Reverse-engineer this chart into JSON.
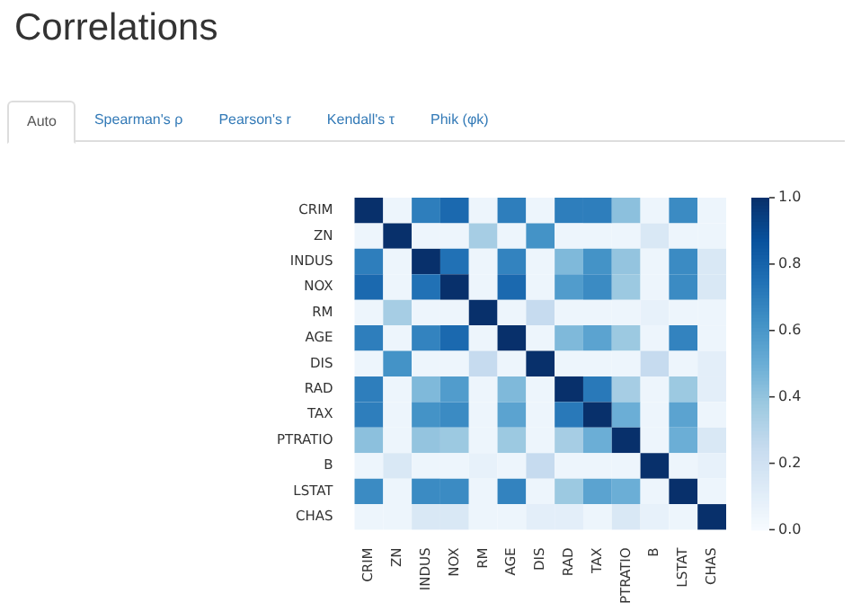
{
  "chart_data": {
    "type": "heatmap",
    "title": "Correlations",
    "annotations": [
      "Auto",
      "Spearman's ρ",
      "Pearson's r",
      "Kendall's τ",
      "Phik (φk)"
    ],
    "categories": [
      "CRIM",
      "ZN",
      "INDUS",
      "NOX",
      "RM",
      "AGE",
      "DIS",
      "RAD",
      "TAX",
      "PTRATIO",
      "B",
      "LSTAT",
      "CHAS"
    ],
    "y_categories": [
      "CRIM",
      "ZN",
      "INDUS",
      "NOX",
      "RM",
      "AGE",
      "DIS",
      "RAD",
      "TAX",
      "PTRATIO",
      "B",
      "LSTAT",
      "CHAS"
    ],
    "cells": [
      [
        1,
        0.05,
        0.7,
        0.78,
        0.05,
        0.7,
        0.05,
        0.7,
        0.7,
        0.42,
        0.05,
        0.65,
        0.05
      ],
      [
        0.05,
        1,
        0.05,
        0.05,
        0.35,
        0.05,
        0.62,
        0.05,
        0.05,
        0.05,
        0.15,
        0.05,
        0.05
      ],
      [
        0.7,
        0.05,
        1,
        0.75,
        0.05,
        0.68,
        0.05,
        0.45,
        0.62,
        0.4,
        0.05,
        0.65,
        0.15
      ],
      [
        0.78,
        0.05,
        0.75,
        1,
        0.05,
        0.78,
        0.05,
        0.58,
        0.65,
        0.38,
        0.05,
        0.65,
        0.15
      ],
      [
        0.05,
        0.35,
        0.05,
        0.05,
        1,
        0.05,
        0.25,
        0.05,
        0.05,
        0.05,
        0.08,
        0.05,
        0.05
      ],
      [
        0.7,
        0.05,
        0.68,
        0.78,
        0.05,
        1,
        0.05,
        0.45,
        0.55,
        0.38,
        0.05,
        0.68,
        0.05
      ],
      [
        0.05,
        0.62,
        0.05,
        0.05,
        0.25,
        0.05,
        1,
        0.05,
        0.05,
        0.05,
        0.25,
        0.05,
        0.1
      ],
      [
        0.7,
        0.05,
        0.45,
        0.58,
        0.05,
        0.45,
        0.05,
        1,
        0.72,
        0.35,
        0.05,
        0.38,
        0.1
      ],
      [
        0.7,
        0.05,
        0.62,
        0.65,
        0.05,
        0.55,
        0.05,
        0.72,
        1,
        0.5,
        0.05,
        0.55,
        0.05
      ],
      [
        0.42,
        0.05,
        0.4,
        0.38,
        0.05,
        0.38,
        0.05,
        0.35,
        0.5,
        1,
        0.05,
        0.5,
        0.15
      ],
      [
        0.05,
        0.15,
        0.05,
        0.05,
        0.08,
        0.05,
        0.25,
        0.05,
        0.05,
        0.05,
        1,
        0.05,
        0.08
      ],
      [
        0.65,
        0.05,
        0.65,
        0.65,
        0.05,
        0.68,
        0.05,
        0.38,
        0.55,
        0.5,
        0.05,
        1,
        0.05
      ],
      [
        0.05,
        0.05,
        0.15,
        0.15,
        0.05,
        0.05,
        0.1,
        0.1,
        0.05,
        0.15,
        0.08,
        0.05,
        1
      ]
    ],
    "clim": [
      0,
      1
    ],
    "cticks": [
      {
        "value": 0,
        "label": "0.0"
      },
      {
        "value": 0.2,
        "label": "0.2"
      },
      {
        "value": 0.4,
        "label": "0.4"
      },
      {
        "value": 0.6,
        "label": "0.6"
      },
      {
        "value": 0.8,
        "label": "0.8"
      },
      {
        "value": 1,
        "label": "1.0"
      }
    ]
  }
}
